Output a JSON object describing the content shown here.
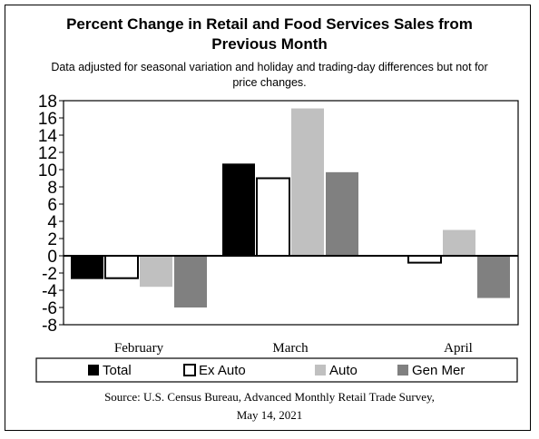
{
  "title": {
    "line1": "Percent Change in Retail and Food Services Sales from",
    "line2": "Previous Month"
  },
  "subtitle": {
    "line1": "Data adjusted for seasonal variation and holiday and trading-day differences but not for",
    "line2": "price changes."
  },
  "source": {
    "line1": "Source: U.S. Census Bureau, Advanced Monthly Retail Trade Survey,",
    "line2": "May 14, 2021"
  },
  "chart_data": {
    "type": "bar",
    "categories": [
      "February",
      "March",
      "April"
    ],
    "series": [
      {
        "name": "Total",
        "values": [
          -2.7,
          10.7,
          0.0
        ],
        "color": "#000000"
      },
      {
        "name": "Ex Auto",
        "values": [
          -2.6,
          9.0,
          -0.8
        ],
        "color": "#ffffff"
      },
      {
        "name": "Auto",
        "values": [
          -3.6,
          17.1,
          3.0
        ],
        "color": "#c0c0c0"
      },
      {
        "name": "Gen Mer",
        "values": [
          -6.0,
          9.7,
          -4.9
        ],
        "color": "#808080"
      }
    ],
    "ylim": [
      -8,
      18
    ],
    "yticks": [
      "18",
      "16",
      "14",
      "12",
      "10",
      "8",
      "6",
      "4",
      "2",
      "0",
      "-2",
      "-4",
      "-6",
      "-8"
    ],
    "legend_position": "bottom",
    "grid": false
  }
}
